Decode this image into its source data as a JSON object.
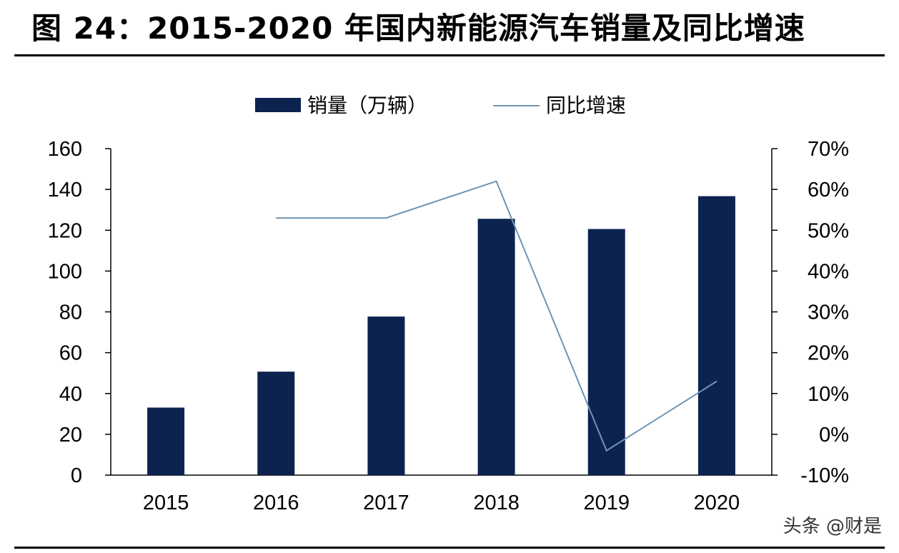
{
  "title": "图 24：2015-2020 年国内新能源汽车销量及同比增速",
  "watermark": "头条 @财是",
  "colors": {
    "bar": "#0c2350",
    "line": "#6f95b3",
    "axis": "#000000"
  },
  "chart_data": {
    "type": "bar",
    "categories": [
      "2015",
      "2016",
      "2017",
      "2018",
      "2019",
      "2020"
    ],
    "series": [
      {
        "name": "销量（万辆）",
        "type": "bar",
        "axis": "left",
        "values": [
          33.1,
          50.7,
          77.7,
          125.6,
          120.6,
          136.7
        ]
      },
      {
        "name": "同比增速",
        "type": "line",
        "axis": "right",
        "values": [
          null,
          0.53,
          0.53,
          0.62,
          -0.04,
          0.13
        ]
      }
    ],
    "y_left": {
      "min": 0,
      "max": 160,
      "ticks": [
        "0",
        "20",
        "40",
        "60",
        "80",
        "100",
        "120",
        "140",
        "160"
      ]
    },
    "y_right": {
      "min": -0.1,
      "max": 0.7,
      "ticks": [
        "-10%",
        "0%",
        "10%",
        "20%",
        "30%",
        "40%",
        "50%",
        "60%",
        "70%"
      ]
    },
    "legend_position": "top-center",
    "grid": false
  }
}
